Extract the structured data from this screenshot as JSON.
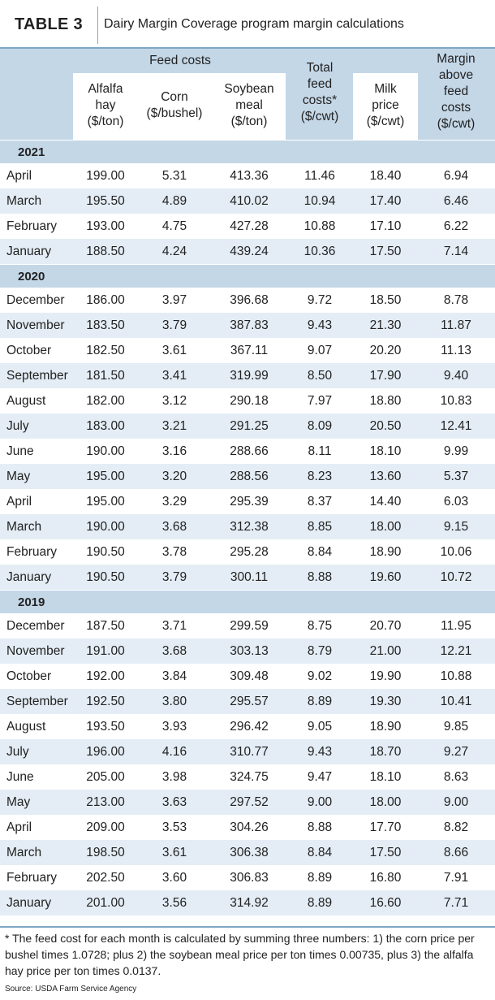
{
  "title": {
    "label": "TABLE 3",
    "text": "Dairy Margin Coverage program margin calculations"
  },
  "header": {
    "group": "Feed costs",
    "alfalfa": [
      "Alfalfa",
      "hay",
      "($/ton)"
    ],
    "corn": [
      "Corn",
      "($/bushel)"
    ],
    "soy": [
      "Soybean",
      "meal",
      "($/ton)"
    ],
    "total": [
      "Total",
      "feed",
      "costs*",
      "($/cwt)"
    ],
    "milk": [
      "Milk",
      "price",
      "($/cwt)"
    ],
    "margin": [
      "Margin",
      "above",
      "feed",
      "costs",
      "($/cwt)"
    ]
  },
  "groups": [
    {
      "year": "2021",
      "rows": [
        [
          "April",
          "199.00",
          "5.31",
          "413.36",
          "11.46",
          "18.40",
          "6.94"
        ],
        [
          "March",
          "195.50",
          "4.89",
          "410.02",
          "10.94",
          "17.40",
          "6.46"
        ],
        [
          "February",
          "193.00",
          "4.75",
          "427.28",
          "10.88",
          "17.10",
          "6.22"
        ],
        [
          "January",
          "188.50",
          "4.24",
          "439.24",
          "10.36",
          "17.50",
          "7.14"
        ]
      ]
    },
    {
      "year": "2020",
      "rows": [
        [
          "December",
          "186.00",
          "3.97",
          "396.68",
          "9.72",
          "18.50",
          "8.78"
        ],
        [
          "November",
          "183.50",
          "3.79",
          "387.83",
          "9.43",
          "21.30",
          "11.87"
        ],
        [
          "October",
          "182.50",
          "3.61",
          "367.11",
          "9.07",
          "20.20",
          "11.13"
        ],
        [
          "September",
          "181.50",
          "3.41",
          "319.99",
          "8.50",
          "17.90",
          "9.40"
        ],
        [
          "August",
          "182.00",
          "3.12",
          "290.18",
          "7.97",
          "18.80",
          "10.83"
        ],
        [
          "July",
          "183.00",
          "3.21",
          "291.25",
          "8.09",
          "20.50",
          "12.41"
        ],
        [
          "June",
          "190.00",
          "3.16",
          "288.66",
          "8.11",
          "18.10",
          "9.99"
        ],
        [
          "May",
          "195.00",
          "3.20",
          "288.56",
          "8.23",
          "13.60",
          "5.37"
        ],
        [
          "April",
          "195.00",
          "3.29",
          "295.39",
          "8.37",
          "14.40",
          "6.03"
        ],
        [
          "March",
          "190.00",
          "3.68",
          "312.38",
          "8.85",
          "18.00",
          "9.15"
        ],
        [
          "February",
          "190.50",
          "3.78",
          "295.28",
          "8.84",
          "18.90",
          "10.06"
        ],
        [
          "January",
          "190.50",
          "3.79",
          "300.11",
          "8.88",
          "19.60",
          "10.72"
        ]
      ]
    },
    {
      "year": "2019",
      "rows": [
        [
          "December",
          "187.50",
          "3.71",
          "299.59",
          "8.75",
          "20.70",
          "11.95"
        ],
        [
          "November",
          "191.00",
          "3.68",
          "303.13",
          "8.79",
          "21.00",
          "12.21"
        ],
        [
          "October",
          "192.00",
          "3.84",
          "309.48",
          "9.02",
          "19.90",
          "10.88"
        ],
        [
          "September",
          "192.50",
          "3.80",
          "295.57",
          "8.89",
          "19.30",
          "10.41"
        ],
        [
          "August",
          "193.50",
          "3.93",
          "296.42",
          "9.05",
          "18.90",
          "9.85"
        ],
        [
          "July",
          "196.00",
          "4.16",
          "310.77",
          "9.43",
          "18.70",
          "9.27"
        ],
        [
          "June",
          "205.00",
          "3.98",
          "324.75",
          "9.47",
          "18.10",
          "8.63"
        ],
        [
          "May",
          "213.00",
          "3.63",
          "297.52",
          "9.00",
          "18.00",
          "9.00"
        ],
        [
          "April",
          "209.00",
          "3.53",
          "304.26",
          "8.88",
          "17.70",
          "8.82"
        ],
        [
          "March",
          "198.50",
          "3.61",
          "306.38",
          "8.84",
          "17.50",
          "8.66"
        ],
        [
          "February",
          "202.50",
          "3.60",
          "306.83",
          "8.89",
          "16.80",
          "7.91"
        ],
        [
          "January",
          "201.00",
          "3.56",
          "314.92",
          "8.89",
          "16.60",
          "7.71"
        ]
      ]
    }
  ],
  "footnote": "* The feed cost for each month is calculated by summing three numbers: 1) the corn price per bushel times 1.0728; plus 2) the soybean meal price per ton times 0.00735, plus 3) the alfalfa hay price per ton times 0.0137.",
  "source": "Source: USDA Farm Service Agency"
}
